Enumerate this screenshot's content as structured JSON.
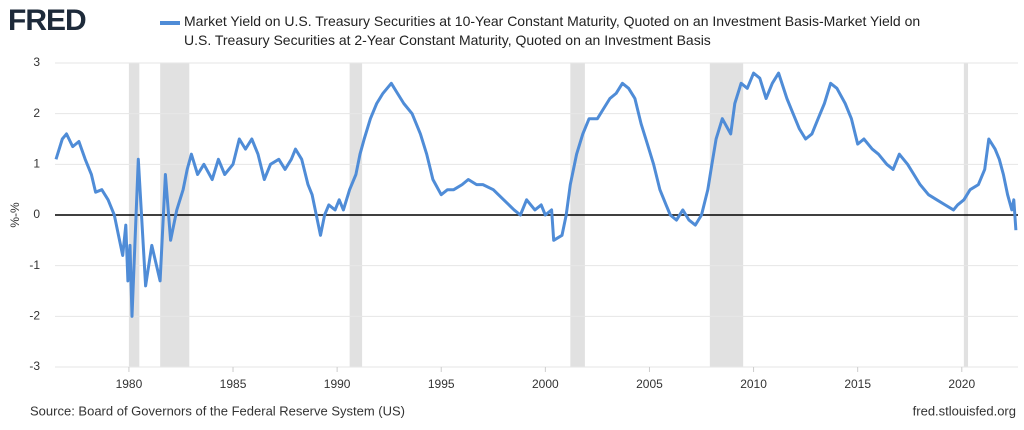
{
  "chart_data": {
    "type": "line",
    "logo": "FRED",
    "ylabel": "%-%",
    "source": "Source: Board of Governors of the Federal Reserve System (US)",
    "site": "fred.stlouisfed.org",
    "xlim": [
      1976.45,
      2022.7
    ],
    "xticks": [
      1980,
      1985,
      1990,
      1995,
      2000,
      2005,
      2010,
      2015,
      2020
    ],
    "ylim": [
      -3,
      3
    ],
    "yticks": [
      -3,
      -2,
      -1,
      0,
      1,
      2,
      3
    ],
    "grid": true,
    "recessions": [
      [
        1980.0,
        1980.5
      ],
      [
        1981.5,
        1982.9
      ],
      [
        1990.6,
        1991.2
      ],
      [
        2001.2,
        2001.9
      ],
      [
        2007.9,
        2009.5
      ],
      [
        2020.1,
        2020.3
      ]
    ],
    "x": [
      1976.5,
      1976.8,
      1977.0,
      1977.3,
      1977.6,
      1977.9,
      1978.2,
      1978.4,
      1978.7,
      1979.0,
      1979.3,
      1979.5,
      1979.7,
      1979.85,
      1979.95,
      1980.05,
      1980.15,
      1980.45,
      1980.8,
      1981.1,
      1981.5,
      1981.75,
      1982.0,
      1982.3,
      1982.6,
      1982.8,
      1983.0,
      1983.3,
      1983.6,
      1984.0,
      1984.3,
      1984.6,
      1985.0,
      1985.3,
      1985.6,
      1985.9,
      1986.2,
      1986.5,
      1986.8,
      1987.2,
      1987.5,
      1987.8,
      1988.0,
      1988.3,
      1988.6,
      1988.8,
      1989.0,
      1989.2,
      1989.4,
      1989.6,
      1989.9,
      1990.1,
      1990.3,
      1990.6,
      1990.9,
      1991.1,
      1991.3,
      1991.6,
      1991.9,
      1992.2,
      1992.6,
      1992.9,
      1993.2,
      1993.6,
      1994.0,
      1994.3,
      1994.6,
      1995.0,
      1995.3,
      1995.6,
      1996.0,
      1996.3,
      1996.7,
      1997.0,
      1997.5,
      1998.0,
      1998.5,
      1998.8,
      1999.1,
      1999.5,
      1999.8,
      2000.0,
      2000.3,
      2000.4,
      2000.8,
      2001.0,
      2001.2,
      2001.5,
      2001.8,
      2002.1,
      2002.5,
      2002.8,
      2003.1,
      2003.4,
      2003.7,
      2004.0,
      2004.3,
      2004.6,
      2004.9,
      2005.2,
      2005.5,
      2005.8,
      2006.0,
      2006.3,
      2006.6,
      2006.9,
      2007.2,
      2007.5,
      2007.8,
      2008.0,
      2008.2,
      2008.5,
      2008.9,
      2009.1,
      2009.4,
      2009.7,
      2010.0,
      2010.3,
      2010.6,
      2010.9,
      2011.2,
      2011.6,
      2011.9,
      2012.2,
      2012.5,
      2012.8,
      2013.1,
      2013.4,
      2013.7,
      2014.0,
      2014.4,
      2014.7,
      2015.0,
      2015.3,
      2015.7,
      2016.0,
      2016.4,
      2016.7,
      2017.0,
      2017.4,
      2017.7,
      2018.0,
      2018.4,
      2018.8,
      2019.2,
      2019.6,
      2019.8,
      2020.1,
      2020.4,
      2020.8,
      2021.1,
      2021.3,
      2021.6,
      2021.8,
      2022.0,
      2022.2,
      2022.4,
      2022.5,
      2022.6
    ],
    "series": [
      {
        "name": "Market Yield on U.S. Treasury Securities at 10-Year Constant Maturity, Quoted on an Investment Basis-Market Yield on U.S. Treasury Securities at 2-Year Constant Maturity, Quoted on an Investment Basis",
        "color": "#4f8cd7",
        "values": [
          1.1,
          1.5,
          1.6,
          1.35,
          1.45,
          1.1,
          0.8,
          0.45,
          0.5,
          0.3,
          0,
          -0.4,
          -0.8,
          -0.2,
          -1.3,
          -0.6,
          -2,
          1.1,
          -1.4,
          -0.6,
          -1.3,
          0.8,
          -0.5,
          0.1,
          0.5,
          0.9,
          1.2,
          0.8,
          1,
          0.7,
          1.1,
          0.8,
          1,
          1.5,
          1.3,
          1.5,
          1.2,
          0.7,
          1,
          1.1,
          0.9,
          1.1,
          1.3,
          1.1,
          0.6,
          0.4,
          0,
          -0.4,
          0,
          0.2,
          0.1,
          0.3,
          0.1,
          0.5,
          0.8,
          1.2,
          1.5,
          1.9,
          2.2,
          2.4,
          2.6,
          2.4,
          2.2,
          2,
          1.6,
          1.2,
          0.7,
          0.4,
          0.5,
          0.5,
          0.6,
          0.7,
          0.6,
          0.6,
          0.5,
          0.3,
          0.1,
          0,
          0.3,
          0.1,
          0.2,
          0,
          0.1,
          -0.5,
          -0.4,
          0,
          0.6,
          1.2,
          1.6,
          1.9,
          1.9,
          2.1,
          2.3,
          2.4,
          2.6,
          2.5,
          2.3,
          1.8,
          1.4,
          1,
          0.5,
          0.2,
          0,
          -0.1,
          0.1,
          -0.1,
          -0.2,
          0,
          0.5,
          1,
          1.5,
          1.9,
          1.6,
          2.2,
          2.6,
          2.5,
          2.8,
          2.7,
          2.3,
          2.6,
          2.8,
          2.3,
          2,
          1.7,
          1.5,
          1.6,
          1.9,
          2.2,
          2.6,
          2.5,
          2.2,
          1.9,
          1.4,
          1.5,
          1.3,
          1.2,
          1,
          0.9,
          1.2,
          1,
          0.8,
          0.6,
          0.4,
          0.3,
          0.2,
          0.1,
          0.2,
          0.3,
          0.5,
          0.6,
          0.9,
          1.5,
          1.3,
          1.1,
          0.8,
          0.4,
          0.1,
          0.3,
          -0.3
        ]
      }
    ]
  }
}
